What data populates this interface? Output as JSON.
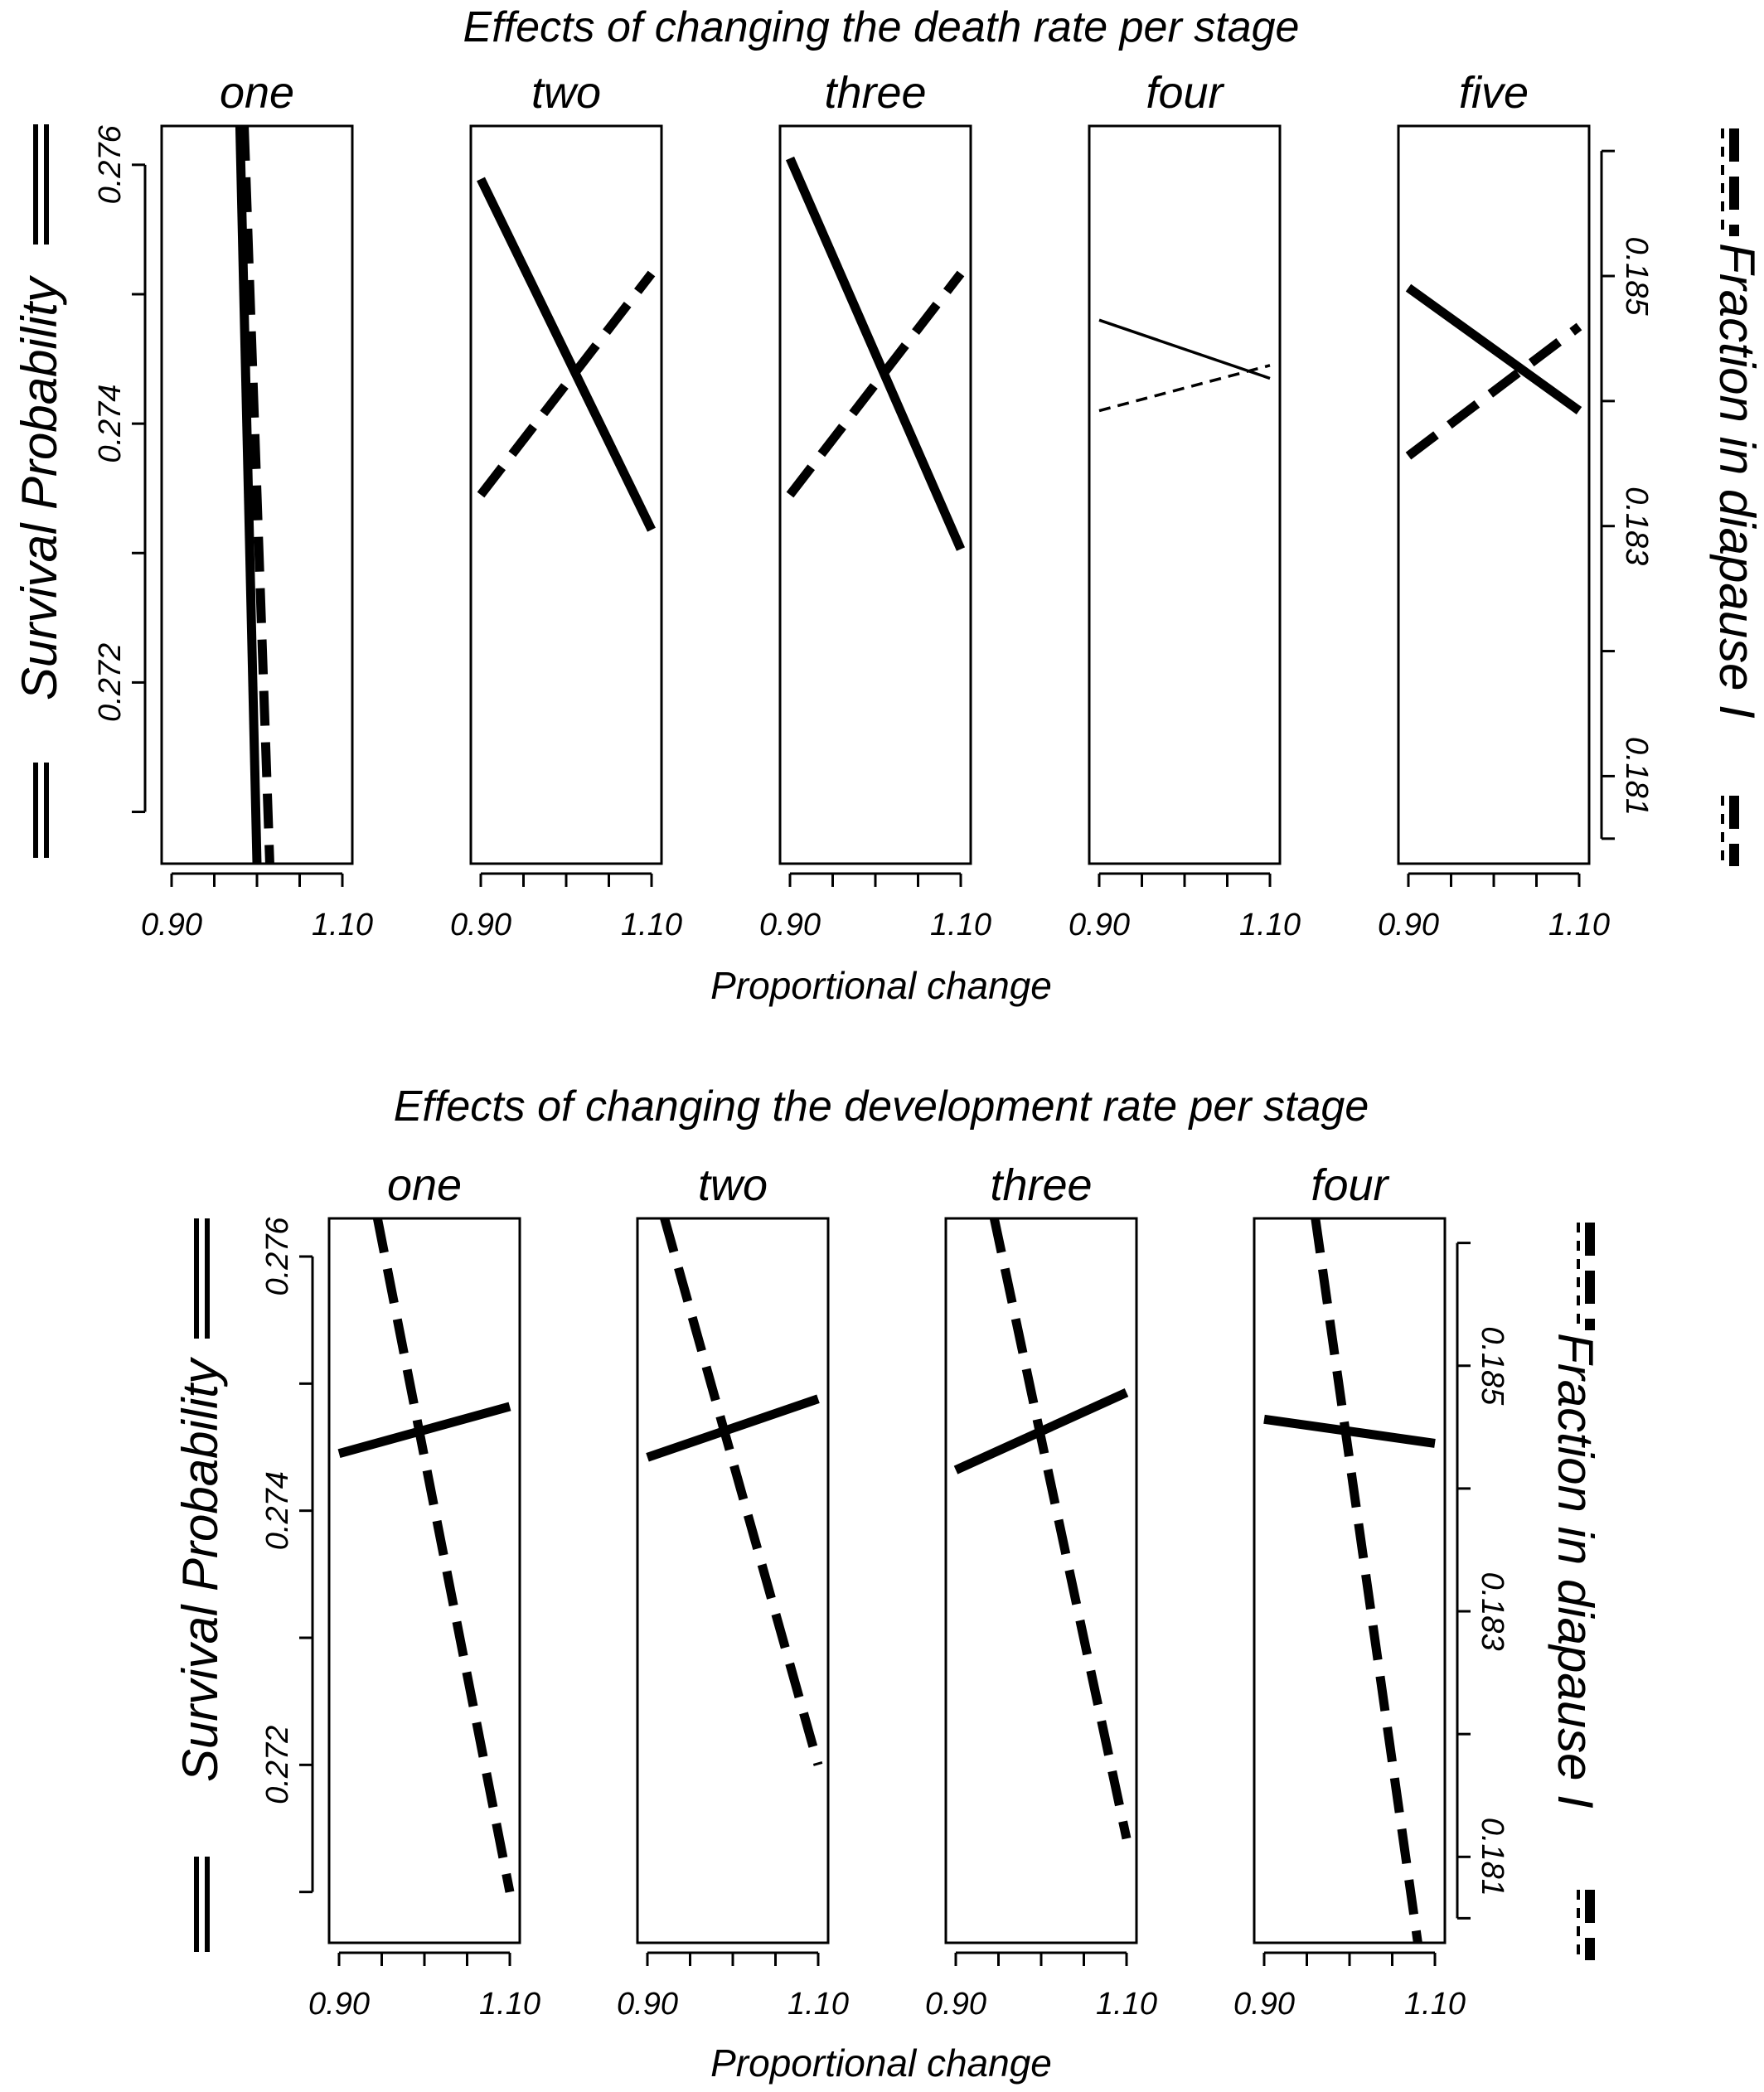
{
  "chart_data": [
    {
      "type": "line",
      "title": "Effects of changing the death rate per stage",
      "xlabel": "Proportional change",
      "ylabel_left": "Survival Probability",
      "ylabel_right": "Fraction in diapause I",
      "xlim": [
        0.9,
        1.1
      ],
      "x_ticks": [
        0.9,
        0.95,
        1.0,
        1.05,
        1.1
      ],
      "x_tick_labels": [
        "0.90",
        "1.10"
      ],
      "y_left_lim": [
        0.2706,
        0.2763
      ],
      "y_left_ticks": [
        0.271,
        0.272,
        0.273,
        0.274,
        0.275,
        0.276
      ],
      "y_left_tick_labels": [
        "0.272",
        "0.274",
        "0.276"
      ],
      "y_right_lim": [
        0.1803,
        0.1862
      ],
      "y_right_ticks": [
        0.1805,
        0.181,
        0.182,
        0.183,
        0.184,
        0.185,
        0.186
      ],
      "y_right_tick_labels": [
        "0.181",
        "0.183",
        "0.185"
      ],
      "panels": [
        {
          "name": "one",
          "series": [
            {
              "style": "solid",
              "weight": "thick",
              "x": [
                0.98,
                1.0
              ],
              "y": [
                0.2763,
                0.2706
              ]
            },
            {
              "style": "dashed",
              "weight": "thick",
              "x": [
                0.985,
                1.015
              ],
              "y": [
                0.2763,
                0.2706
              ]
            }
          ]
        },
        {
          "name": "two",
          "series": [
            {
              "style": "solid",
              "weight": "thick",
              "x": [
                0.9,
                1.1
              ],
              "y": [
                0.27589,
                0.27318
              ]
            },
            {
              "style": "dashed",
              "weight": "thick",
              "x": [
                0.9,
                1.1
              ],
              "y": [
                0.27345,
                0.27516
              ]
            }
          ]
        },
        {
          "name": "three",
          "series": [
            {
              "style": "solid",
              "weight": "thick",
              "x": [
                0.9,
                1.1
              ],
              "y": [
                0.27605,
                0.27303
              ]
            },
            {
              "style": "dashed",
              "weight": "thick",
              "x": [
                0.9,
                1.1
              ],
              "y": [
                0.27345,
                0.27516
              ]
            }
          ]
        },
        {
          "name": "four",
          "series": [
            {
              "style": "solid",
              "weight": "thin",
              "x": [
                0.9,
                1.1
              ],
              "y": [
                0.2748,
                0.27435
              ]
            },
            {
              "style": "dashed",
              "weight": "thin",
              "x": [
                0.9,
                1.1
              ],
              "y": [
                0.2741,
                0.27445
              ]
            }
          ]
        },
        {
          "name": "five",
          "series": [
            {
              "style": "solid",
              "weight": "thick",
              "x": [
                0.9,
                1.1
              ],
              "y": [
                0.27505,
                0.2741
              ]
            },
            {
              "style": "dashed",
              "weight": "thick",
              "x": [
                0.9,
                1.1
              ],
              "y": [
                0.27375,
                0.27475
              ]
            }
          ]
        }
      ]
    },
    {
      "type": "line",
      "title": "Effects of changing the development rate per stage",
      "xlabel": "Proportional change",
      "ylabel_left": "Survival Probability",
      "ylabel_right": "Fraction in diapause I",
      "xlim": [
        0.9,
        1.1
      ],
      "x_ticks": [
        0.9,
        0.95,
        1.0,
        1.05,
        1.1
      ],
      "x_tick_labels": [
        "0.90",
        "1.10"
      ],
      "y_left_lim": [
        0.2706,
        0.2763
      ],
      "y_left_ticks": [
        0.271,
        0.272,
        0.273,
        0.274,
        0.275,
        0.276
      ],
      "y_left_tick_labels": [
        "0.272",
        "0.274",
        "0.276"
      ],
      "y_right_lim": [
        0.1803,
        0.1862
      ],
      "y_right_ticks": [
        0.1805,
        0.181,
        0.182,
        0.183,
        0.184,
        0.185,
        0.186
      ],
      "y_right_tick_labels": [
        "0.181",
        "0.183",
        "0.185"
      ],
      "panels": [
        {
          "name": "one",
          "series": [
            {
              "style": "solid",
              "weight": "thick",
              "x": [
                0.9,
                1.1
              ],
              "y": [
                0.27445,
                0.27482
              ]
            },
            {
              "style": "dashed",
              "weight": "thick",
              "x": [
                0.945,
                1.1
              ],
              "y": [
                0.2763,
                0.271
              ]
            }
          ]
        },
        {
          "name": "two",
          "series": [
            {
              "style": "solid",
              "weight": "thick",
              "x": [
                0.9,
                1.1
              ],
              "y": [
                0.27442,
                0.27488
              ]
            },
            {
              "style": "dashed",
              "weight": "thick",
              "x": [
                0.92,
                1.1
              ],
              "y": [
                0.2763,
                0.272
              ]
            }
          ]
        },
        {
          "name": "three",
          "series": [
            {
              "style": "solid",
              "weight": "thick",
              "x": [
                0.9,
                1.1
              ],
              "y": [
                0.27432,
                0.27493
              ]
            },
            {
              "style": "dashed",
              "weight": "thick",
              "x": [
                0.945,
                1.1
              ],
              "y": [
                0.2763,
                0.27142
              ]
            }
          ]
        },
        {
          "name": "four",
          "series": [
            {
              "style": "solid",
              "weight": "thick",
              "x": [
                0.9,
                1.1
              ],
              "y": [
                0.27472,
                0.27453
              ]
            },
            {
              "style": "dashed",
              "weight": "thick",
              "x": [
                0.96,
                1.08
              ],
              "y": [
                0.2763,
                0.2706
              ]
            }
          ]
        }
      ]
    }
  ]
}
